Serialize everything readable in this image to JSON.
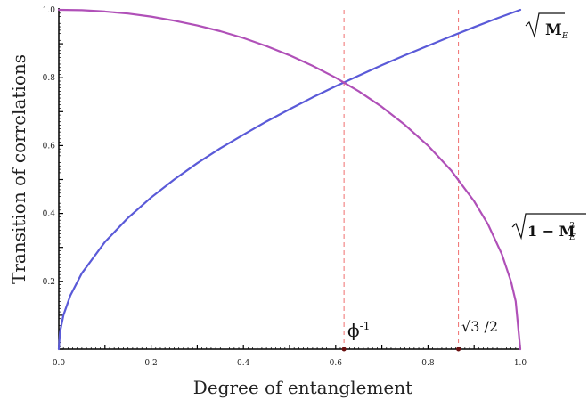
{
  "chart_data": {
    "type": "line",
    "xlabel": "Degree of entanglement",
    "ylabel": "Transition of correlations",
    "xlim": [
      0,
      1
    ],
    "ylim": [
      0,
      1
    ],
    "x_ticks": [
      "0.0",
      "0.2",
      "0.4",
      "0.6",
      "0.8",
      "1.0"
    ],
    "y_ticks": [
      "0.2",
      "0.4",
      "0.6",
      "0.8",
      "1.0"
    ],
    "series": [
      {
        "name": "√Mₑ",
        "color": "#5a5ad8",
        "x": [
          0,
          0.0025,
          0.01,
          0.025,
          0.05,
          0.1,
          0.15,
          0.2,
          0.25,
          0.3,
          0.35,
          0.4,
          0.45,
          0.5,
          0.55,
          0.6,
          0.65,
          0.7,
          0.75,
          0.8,
          0.85,
          0.9,
          0.95,
          1.0
        ],
        "y": [
          0,
          0.05,
          0.1,
          0.158,
          0.224,
          0.316,
          0.387,
          0.447,
          0.5,
          0.548,
          0.592,
          0.632,
          0.671,
          0.707,
          0.742,
          0.775,
          0.806,
          0.837,
          0.866,
          0.894,
          0.922,
          0.949,
          0.975,
          1.0
        ]
      },
      {
        "name": "√(1 − Mₑ²)",
        "color": "#b050b8",
        "x": [
          0,
          0.05,
          0.1,
          0.15,
          0.2,
          0.25,
          0.3,
          0.35,
          0.4,
          0.45,
          0.5,
          0.55,
          0.6,
          0.65,
          0.7,
          0.75,
          0.8,
          0.85,
          0.9,
          0.93,
          0.96,
          0.98,
          0.99,
          1.0
        ],
        "y": [
          1.0,
          0.999,
          0.995,
          0.989,
          0.98,
          0.968,
          0.954,
          0.937,
          0.917,
          0.893,
          0.866,
          0.835,
          0.8,
          0.76,
          0.714,
          0.661,
          0.6,
          0.527,
          0.436,
          0.368,
          0.28,
          0.199,
          0.141,
          0
        ]
      }
    ],
    "reference_lines": [
      {
        "x": 0.618,
        "label": "ϕ",
        "label_sup": "-1",
        "color": "#f07070"
      },
      {
        "x": 0.866,
        "label": "√3 /2",
        "color": "#f07070"
      }
    ],
    "series_labels": {
      "s1_main": "M",
      "s1_sub": "E",
      "s2_main": "1 − M",
      "s2_sub": "E",
      "s2_sup": "2"
    }
  }
}
